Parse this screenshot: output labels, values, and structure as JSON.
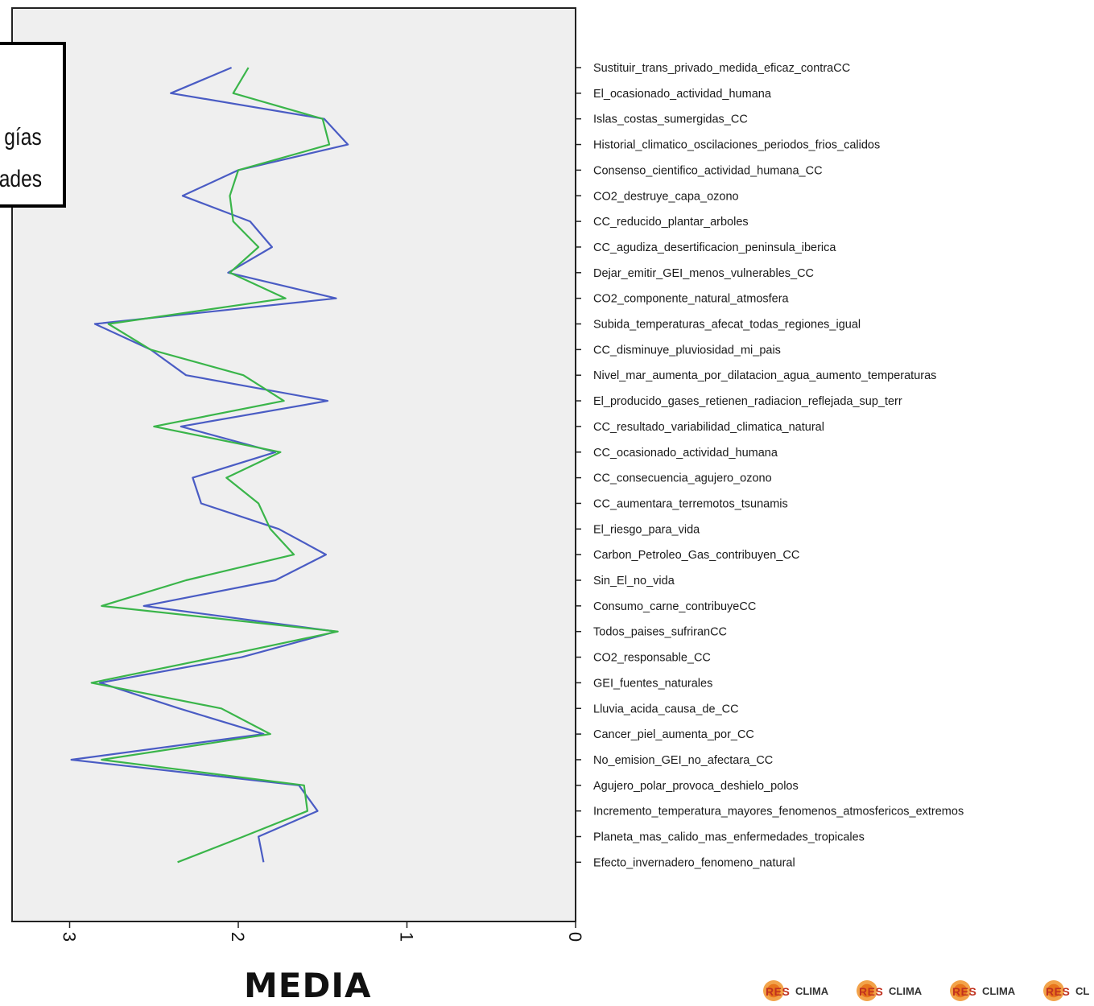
{
  "chart_data": {
    "type": "line",
    "orientation": "horizontal",
    "x_axis": {
      "ticks": [
        0,
        1,
        2,
        3
      ],
      "range": [
        0,
        3.3
      ],
      "reversed": true,
      "label": "MEDIA"
    },
    "legend_fragments": [
      "gías",
      "ades"
    ],
    "categories": [
      "Sustituir_trans_privado_medida_eficaz_contraCC",
      "El_ocasionado_actividad_humana",
      "Islas_costas_sumergidas_CC",
      "Historial_climatico_oscilaciones_periodos_frios_calidos",
      "Consenso_cientifico_actividad_humana_CC",
      "CO2_destruye_capa_ozono",
      "CC_reducido_plantar_arboles",
      "CC_agudiza_desertificacion_peninsula_iberica",
      "Dejar_emitir_GEI_menos_vulnerables_CC",
      "CO2_componente_natural_atmosfera",
      "Subida_temperaturas_afecat_todas_regiones_igual",
      "CC_disminuye_pluviosidad_mi_pais",
      "Nivel_mar_aumenta_por_dilatacion_agua_aumento_temperaturas",
      "El_producido_gases_retienen_radiacion_reflejada_sup_terr",
      "CC_resultado_variabilidad_climatica_natural",
      "CC_ocasionado_actividad_humana",
      "CC_consecuencia_agujero_ozono",
      "CC_aumentara_terremotos_tsunamis",
      "El_riesgo_para_vida",
      "Carbon_Petroleo_Gas_contribuyen_CC",
      "Sin_El_no_vida",
      "Consumo_carne_contribuyeCC",
      "Todos_paises_sufriranCC",
      "CO2_responsable_CC",
      "GEI_fuentes_naturales",
      "Lluvia_acida_causa_de_CC",
      "Cancer_piel_aumenta_por_CC",
      "No_emision_GEI_no_afectara_CC",
      "Agujero_polar_provoca_deshielo_polos",
      "Incremento_temperatura_mayores_fenomenos_atmosfericos_ extremos",
      "Planeta_mas_calido_mas_enfermedades_tropicales",
      "Efecto_invernadero_fenomeno_natural"
    ],
    "series": [
      {
        "color": "#4a5cc4",
        "values": [
          2.04,
          2.4,
          1.49,
          1.35,
          2.0,
          2.33,
          1.93,
          1.8,
          2.06,
          1.42,
          2.85,
          2.52,
          2.31,
          1.47,
          2.34,
          1.78,
          2.27,
          2.22,
          1.76,
          1.48,
          1.78,
          2.56,
          1.42,
          1.98,
          2.82,
          2.35,
          1.85,
          2.99,
          1.64,
          1.53,
          1.88,
          1.85
        ]
      },
      {
        "color": "#3ab54a",
        "values": [
          1.94,
          2.03,
          1.5,
          1.46,
          2.0,
          2.05,
          2.03,
          1.88,
          2.05,
          1.72,
          2.77,
          2.52,
          1.97,
          1.73,
          2.5,
          1.75,
          2.07,
          1.88,
          1.81,
          1.67,
          2.31,
          2.81,
          1.41,
          2.13,
          2.87,
          2.1,
          1.81,
          2.81,
          1.61,
          1.59,
          1.97,
          2.36
        ]
      }
    ]
  },
  "logos": [
    {
      "res": "RES",
      "clima": "CLIMA"
    },
    {
      "res": "RES",
      "clima": "CLIMA"
    },
    {
      "res": "RES",
      "clima": "CLIMA"
    },
    {
      "res": "RES",
      "clima": "CL"
    }
  ]
}
